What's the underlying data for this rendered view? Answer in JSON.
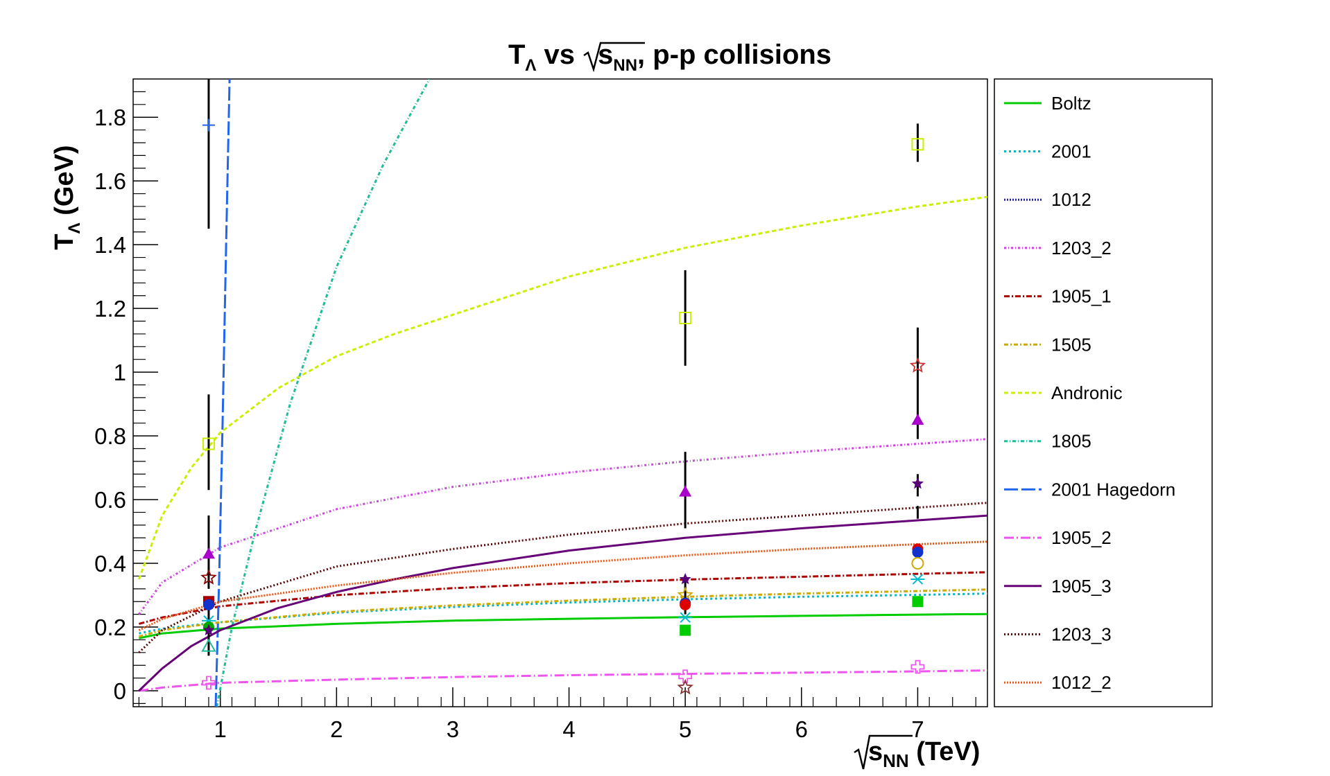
{
  "chart_data": {
    "type": "scatter",
    "title": {
      "main": "T",
      "sub": "Λ",
      "mid": " vs ",
      "root": "s",
      "root_sub": "NN",
      "tail": ", p-p collisions"
    },
    "ylabel": {
      "main": "T",
      "sub": "Λ",
      "tail": " (GeV)"
    },
    "xlabel": {
      "root": "s",
      "root_sub": "NN",
      "tail": " (TeV)"
    },
    "xlim": [
      0.25,
      7.6
    ],
    "ylim": [
      -0.05,
      1.92
    ],
    "x_ticks": [
      "1",
      "2",
      "3",
      "4",
      "5",
      "6",
      "7"
    ],
    "y_ticks": [
      "0",
      "0.2",
      "0.4",
      "0.6",
      "0.8",
      "1",
      "1.2",
      "1.4",
      "1.6",
      "1.8"
    ],
    "grid": false,
    "legend_position": "right",
    "series": [
      {
        "name": "Boltz",
        "color": "#00cc00",
        "dash": "",
        "width": 3,
        "x": [
          0.3,
          0.5,
          1,
          2,
          3,
          4,
          5,
          6,
          7,
          7.6
        ],
        "y": [
          0.165,
          0.18,
          0.195,
          0.21,
          0.22,
          0.226,
          0.231,
          0.235,
          0.239,
          0.241
        ]
      },
      {
        "name": "2001",
        "color": "#00b5c8",
        "dash": "3,4",
        "width": 3,
        "x": [
          0.3,
          0.5,
          1,
          2,
          3,
          4,
          5,
          6,
          7,
          7.6
        ],
        "y": [
          0.18,
          0.195,
          0.215,
          0.245,
          0.263,
          0.277,
          0.287,
          0.295,
          0.301,
          0.305
        ]
      },
      {
        "name": "1012",
        "color": "#2020a0",
        "dash": "2,2",
        "width": 3,
        "x": [],
        "y": []
      },
      {
        "name": "1203_2",
        "color": "#cc44dd",
        "dash": "3,3,1,3",
        "width": 3,
        "x": [
          0.3,
          0.5,
          1,
          2,
          3,
          4,
          5,
          6,
          7,
          7.6
        ],
        "y": [
          0.24,
          0.34,
          0.45,
          0.57,
          0.64,
          0.685,
          0.72,
          0.75,
          0.775,
          0.79
        ]
      },
      {
        "name": "1905_1",
        "color": "#aa0000",
        "dash": "8,3,2,3",
        "width": 3,
        "x": [
          0.3,
          0.5,
          1,
          2,
          3,
          4,
          5,
          6,
          7,
          7.6
        ],
        "y": [
          0.21,
          0.23,
          0.265,
          0.3,
          0.322,
          0.338,
          0.349,
          0.358,
          0.367,
          0.372
        ]
      },
      {
        "name": "1505",
        "color": "#ccaa00",
        "dash": "6,3,2,3",
        "width": 3,
        "x": [
          0.3,
          0.5,
          1,
          2,
          3,
          4,
          5,
          6,
          7,
          7.6
        ],
        "y": [
          0.17,
          0.19,
          0.215,
          0.248,
          0.268,
          0.283,
          0.295,
          0.305,
          0.313,
          0.318
        ]
      },
      {
        "name": "Andronic",
        "color": "#ccee00",
        "dash": "6,4",
        "width": 3,
        "x": [
          0.3,
          0.5,
          0.75,
          1,
          1.5,
          2,
          2.5,
          3,
          4,
          5,
          6,
          7,
          7.6
        ],
        "y": [
          0.35,
          0.55,
          0.7,
          0.81,
          0.95,
          1.05,
          1.12,
          1.18,
          1.3,
          1.39,
          1.46,
          1.52,
          1.55
        ]
      },
      {
        "name": "1805",
        "color": "#22bb99",
        "dash": "5,3,1,3",
        "width": 3,
        "x": [
          0.97,
          1.1,
          1.3,
          1.6,
          2.0,
          2.4,
          2.8
        ],
        "y": [
          -0.05,
          0.2,
          0.5,
          0.9,
          1.33,
          1.65,
          1.92
        ]
      },
      {
        "name": "2001 Hagedorn",
        "color": "#2266ee",
        "dash": "20,5",
        "width": 3,
        "x": [
          0.96,
          0.99,
          1.02,
          1.05,
          1.08
        ],
        "y": [
          -0.05,
          0.35,
          0.85,
          1.4,
          1.92
        ]
      },
      {
        "name": "1905_2",
        "color": "#ee55ee",
        "dash": "14,4,2,4",
        "width": 3,
        "x": [
          0.3,
          0.5,
          1,
          2,
          3,
          4,
          5,
          6,
          7,
          7.6
        ],
        "y": [
          0.0,
          0.01,
          0.025,
          0.035,
          0.043,
          0.049,
          0.053,
          0.057,
          0.061,
          0.064
        ]
      },
      {
        "name": "1905_3",
        "color": "#660077",
        "dash": "",
        "width": 3,
        "x": [
          0.3,
          0.5,
          0.75,
          1,
          1.5,
          2,
          2.5,
          3,
          4,
          5,
          6,
          7,
          7.6
        ],
        "y": [
          0.0,
          0.07,
          0.14,
          0.19,
          0.26,
          0.31,
          0.35,
          0.385,
          0.44,
          0.48,
          0.51,
          0.535,
          0.55
        ]
      },
      {
        "name": "1203_3",
        "color": "#550000",
        "dash": "2,3",
        "width": 3,
        "x": [
          0.3,
          0.5,
          1,
          2,
          3,
          4,
          5,
          6,
          7,
          7.6
        ],
        "y": [
          0.12,
          0.19,
          0.28,
          0.39,
          0.445,
          0.49,
          0.525,
          0.55,
          0.575,
          0.59
        ]
      },
      {
        "name": "1012_2",
        "color": "#ee5511",
        "dash": "2,2",
        "width": 3,
        "x": [
          0.3,
          0.5,
          1,
          2,
          3,
          4,
          5,
          6,
          7,
          7.6
        ],
        "y": [
          0.19,
          0.225,
          0.28,
          0.33,
          0.37,
          0.4,
          0.425,
          0.445,
          0.46,
          0.468
        ]
      }
    ],
    "error_bars": [
      {
        "x": 0.9,
        "ylow": 1.45,
        "yhigh": 1.92
      },
      {
        "x": 0.9,
        "ylow": 0.63,
        "yhigh": 0.93
      },
      {
        "x": 0.9,
        "ylow": 0.32,
        "yhigh": 0.55
      },
      {
        "x": 0.9,
        "ylow": 0.11,
        "yhigh": 0.28
      },
      {
        "x": 5.0,
        "ylow": 1.02,
        "yhigh": 1.32
      },
      {
        "x": 5.0,
        "ylow": 0.51,
        "yhigh": 0.75
      },
      {
        "x": 5.0,
        "ylow": 0.24,
        "yhigh": 0.36
      },
      {
        "x": 7.0,
        "ylow": 1.66,
        "yhigh": 1.78
      },
      {
        "x": 7.0,
        "ylow": 0.79,
        "yhigh": 1.14
      },
      {
        "x": 7.0,
        "ylow": 0.61,
        "yhigh": 0.68
      },
      {
        "x": 7.0,
        "ylow": 0.54,
        "yhigh": 0.58
      }
    ],
    "points": [
      {
        "x": 0.9,
        "y": 1.775,
        "marker": "plus",
        "color": "#2266ee"
      },
      {
        "x": 0.9,
        "y": 0.775,
        "marker": "open-square",
        "color": "#ccee00"
      },
      {
        "x": 0.9,
        "y": 0.43,
        "marker": "filled-triangle",
        "color": "#aa00cc"
      },
      {
        "x": 0.9,
        "y": 0.355,
        "marker": "open-star",
        "color": "#880000"
      },
      {
        "x": 0.9,
        "y": 0.28,
        "marker": "filled-square",
        "color": "#aa0000"
      },
      {
        "x": 0.9,
        "y": 0.27,
        "marker": "filled-circle",
        "color": "#1133cc"
      },
      {
        "x": 0.9,
        "y": 0.22,
        "marker": "asterisk",
        "color": "#00bbcc"
      },
      {
        "x": 0.9,
        "y": 0.2,
        "marker": "filled-circle",
        "color": "#00aa00"
      },
      {
        "x": 0.9,
        "y": 0.19,
        "marker": "filled-star",
        "color": "#550077"
      },
      {
        "x": 0.9,
        "y": 0.14,
        "marker": "open-triangle",
        "color": "#22bb99"
      },
      {
        "x": 0.9,
        "y": 0.025,
        "marker": "open-cross",
        "color": "#ee55ee"
      },
      {
        "x": 5.0,
        "y": 1.17,
        "marker": "open-square",
        "color": "#ccee00"
      },
      {
        "x": 5.0,
        "y": 0.625,
        "marker": "filled-triangle",
        "color": "#aa00cc"
      },
      {
        "x": 5.0,
        "y": 0.35,
        "marker": "filled-star",
        "color": "#550077"
      },
      {
        "x": 5.0,
        "y": 0.3,
        "marker": "open-star",
        "color": "#ccaa00"
      },
      {
        "x": 5.0,
        "y": 0.275,
        "marker": "filled-circle",
        "color": "#1133cc"
      },
      {
        "x": 5.0,
        "y": 0.27,
        "marker": "filled-circle",
        "color": "#dd0000"
      },
      {
        "x": 5.0,
        "y": 0.23,
        "marker": "asterisk",
        "color": "#00bbcc"
      },
      {
        "x": 5.0,
        "y": 0.19,
        "marker": "filled-square",
        "color": "#00cc00"
      },
      {
        "x": 5.0,
        "y": 0.045,
        "marker": "open-cross",
        "color": "#ee55ee"
      },
      {
        "x": 5.0,
        "y": 0.01,
        "marker": "open-star",
        "color": "#883333"
      },
      {
        "x": 7.0,
        "y": 1.715,
        "marker": "open-square",
        "color": "#ccee00"
      },
      {
        "x": 7.0,
        "y": 1.02,
        "marker": "open-star",
        "color": "#cc3333"
      },
      {
        "x": 7.0,
        "y": 0.85,
        "marker": "filled-triangle",
        "color": "#aa00cc"
      },
      {
        "x": 7.0,
        "y": 0.65,
        "marker": "filled-star",
        "color": "#550077"
      },
      {
        "x": 7.0,
        "y": 0.445,
        "marker": "filled-circle",
        "color": "#dd0000"
      },
      {
        "x": 7.0,
        "y": 0.435,
        "marker": "filled-circle",
        "color": "#1133cc"
      },
      {
        "x": 7.0,
        "y": 0.4,
        "marker": "open-circle",
        "color": "#ccaa00"
      },
      {
        "x": 7.0,
        "y": 0.35,
        "marker": "asterisk",
        "color": "#00bbcc"
      },
      {
        "x": 7.0,
        "y": 0.28,
        "marker": "filled-square",
        "color": "#00cc00"
      },
      {
        "x": 7.0,
        "y": 0.075,
        "marker": "open-cross",
        "color": "#ee55ee"
      }
    ]
  }
}
